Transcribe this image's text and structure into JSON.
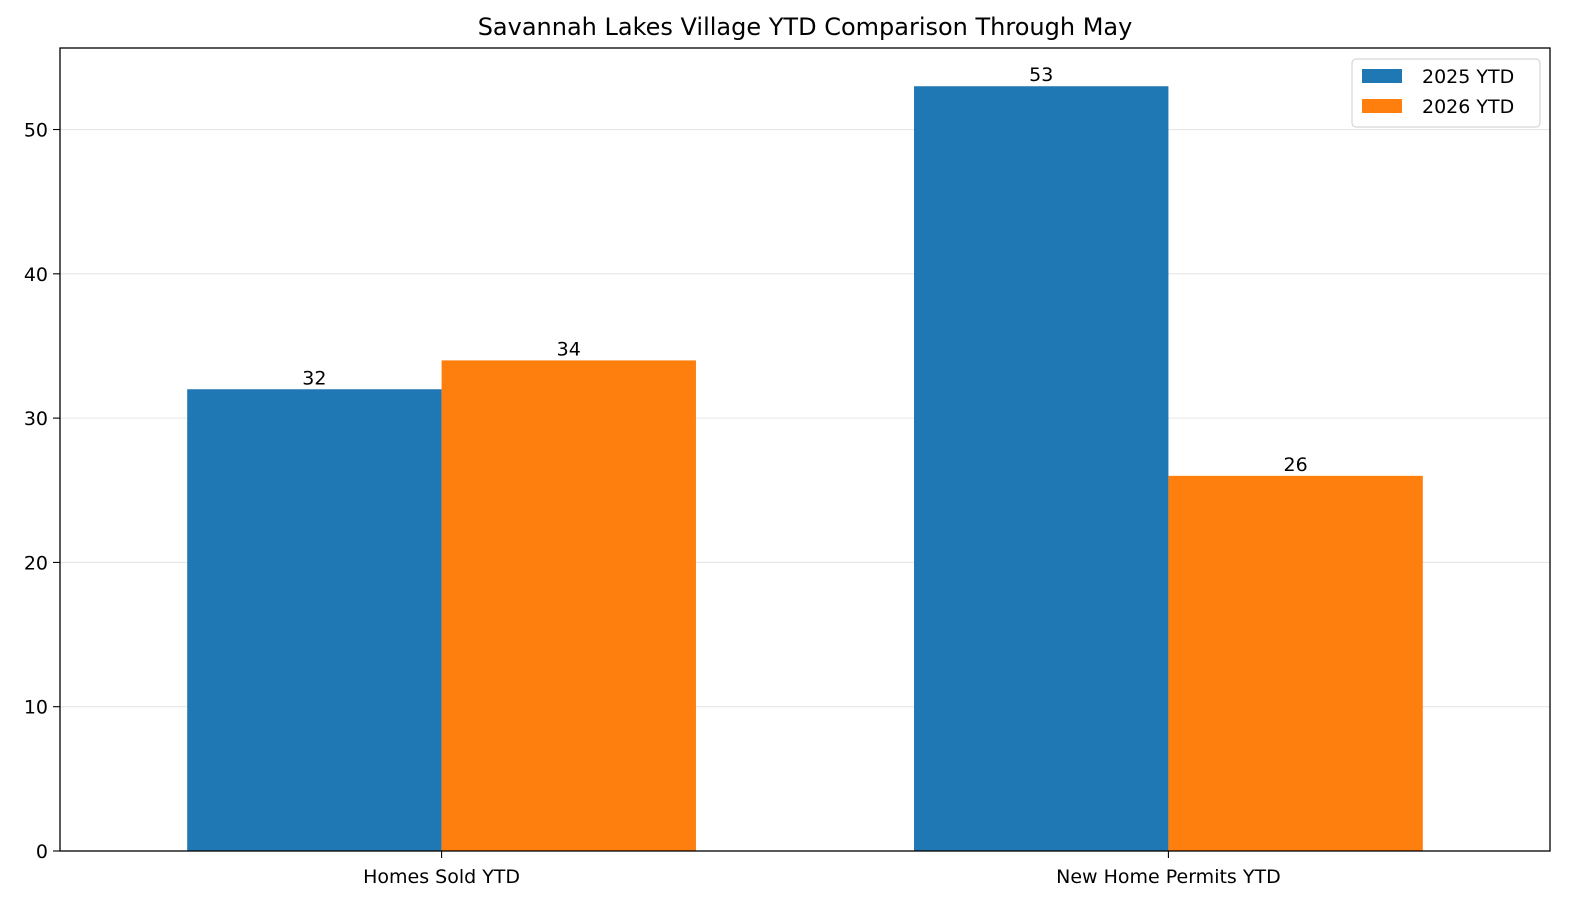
{
  "chart_data": {
    "type": "bar",
    "title": "Savannah Lakes Village YTD Comparison Through May",
    "xlabel": "",
    "ylabel": "",
    "categories": [
      "Homes Sold YTD",
      "New Home Permits YTD"
    ],
    "series": [
      {
        "name": "2025 YTD",
        "values": [
          32,
          53
        ],
        "color": "#1f77b4"
      },
      {
        "name": "2026 YTD",
        "values": [
          34,
          26
        ],
        "color": "#ff7f0e"
      }
    ],
    "ylim": [
      0,
      55.65
    ],
    "yticks": [
      0,
      10,
      20,
      30,
      40,
      50
    ],
    "grid": "y",
    "legend_position": "top-right",
    "data_labels": true
  }
}
